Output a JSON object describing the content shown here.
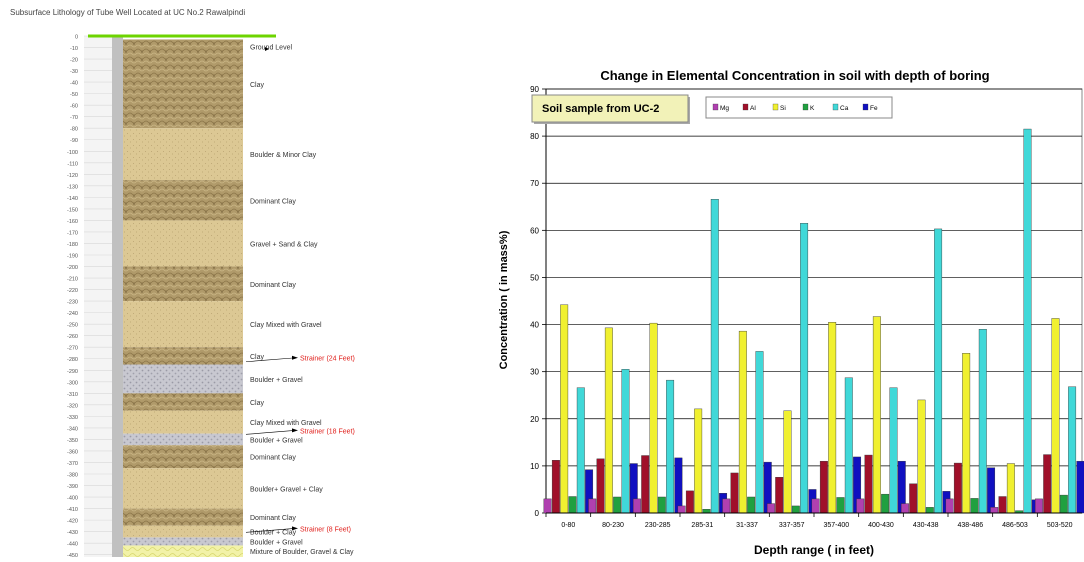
{
  "litho": {
    "title": "Subsurface Lithology of Tube Well Located at UC No.2 Rawalpindi",
    "depth_ticks": [
      0,
      10,
      20,
      30,
      40,
      50,
      60,
      70,
      80,
      90,
      100,
      110,
      120,
      130,
      140,
      150,
      160,
      170,
      180,
      190,
      200,
      210,
      220,
      230,
      240,
      250,
      260,
      270,
      280,
      290,
      300,
      310,
      320,
      330,
      340,
      350,
      360,
      370,
      380,
      390,
      400,
      410,
      420,
      430,
      440,
      450
    ],
    "layers": [
      {
        "top": 0,
        "bottom": 3,
        "pattern": "green",
        "label": ""
      },
      {
        "top": 3,
        "bottom": 80,
        "pattern": "clay",
        "label": "Clay"
      },
      {
        "top": 80,
        "bottom": 125,
        "pattern": "sand",
        "label": "Boulder & Minor Clay"
      },
      {
        "top": 125,
        "bottom": 160,
        "pattern": "clay",
        "label": "Dominant Clay"
      },
      {
        "top": 160,
        "bottom": 200,
        "pattern": "sand",
        "label": "Gravel + Sand & Clay"
      },
      {
        "top": 200,
        "bottom": 230,
        "pattern": "clay",
        "label": "Dominant Clay"
      },
      {
        "top": 230,
        "bottom": 270,
        "pattern": "sand",
        "label": "Clay Mixed with Gravel"
      },
      {
        "top": 270,
        "bottom": 285,
        "pattern": "clay",
        "label": "Clay"
      },
      {
        "top": 285,
        "bottom": 310,
        "pattern": "gravel",
        "label": "Boulder + Gravel"
      },
      {
        "top": 310,
        "bottom": 325,
        "pattern": "clay",
        "label": "Clay"
      },
      {
        "top": 325,
        "bottom": 345,
        "pattern": "sand",
        "label": "Clay Mixed with Gravel"
      },
      {
        "top": 345,
        "bottom": 355,
        "pattern": "gravel",
        "label": "Boulder + Gravel"
      },
      {
        "top": 355,
        "bottom": 375,
        "pattern": "clay",
        "label": "Dominant Clay"
      },
      {
        "top": 375,
        "bottom": 410,
        "pattern": "sand",
        "label": "Boulder+ Gravel + Clay"
      },
      {
        "top": 410,
        "bottom": 425,
        "pattern": "clay",
        "label": "Dominant Clay"
      },
      {
        "top": 425,
        "bottom": 435,
        "pattern": "sand",
        "label": "Boulder + Clay"
      },
      {
        "top": 435,
        "bottom": 442,
        "pattern": "gravel",
        "label": "Boulder + Gravel"
      },
      {
        "top": 442,
        "bottom": 452,
        "pattern": "mixture",
        "label": "Mixture of Boulder, Gravel & Clay"
      }
    ],
    "ground_level": "Ground Level",
    "strainers": [
      {
        "label": "Strainer (24 Feet)",
        "depth": 280
      },
      {
        "label": "Strainer (18 Feet)",
        "depth": 343
      },
      {
        "label": "Strainer (8 Feet)",
        "depth": 428
      }
    ],
    "colors": {
      "clay": "#b09a6a",
      "sand": "#dcc894",
      "gravel": "#c4c4cc",
      "mixture": "#ecec9a",
      "green": "#6dd400",
      "strainer": "#e0201c"
    }
  },
  "chart_data": {
    "type": "bar",
    "title": "Change in Elemental Concentration in soil with depth of boring",
    "xlabel": "Depth range ( in feet)",
    "ylabel": "Concentration ( in mass%)",
    "ylim": [
      0,
      90
    ],
    "yticks": [
      0,
      10,
      20,
      30,
      40,
      50,
      60,
      70,
      80,
      90
    ],
    "grid": true,
    "annotation": "Soil sample from UC-2",
    "legend_position": "top",
    "categories": [
      "0-80",
      "80-230",
      "230-285",
      "285-31",
      "31-337",
      "337-357",
      "357-400",
      "400-430",
      "430-438",
      "438-486",
      "486-503",
      "503-520"
    ],
    "series": [
      {
        "name": "Mg",
        "color": "#b040b0",
        "values": [
          3.0,
          3.0,
          3.0,
          1.5,
          3.0,
          2.0,
          3.0,
          3.0,
          2.0,
          3.0,
          1.2,
          3.0
        ]
      },
      {
        "name": "Al",
        "color": "#a0102a",
        "values": [
          11.2,
          11.5,
          12.2,
          4.7,
          8.5,
          7.6,
          11.0,
          12.3,
          6.2,
          10.6,
          3.5,
          12.4
        ]
      },
      {
        "name": "Si",
        "color": "#f0f030",
        "values": [
          44.2,
          39.3,
          40.3,
          22.1,
          38.6,
          21.7,
          40.5,
          41.7,
          24.0,
          33.9,
          10.5,
          41.3
        ]
      },
      {
        "name": "K",
        "color": "#20a040",
        "values": [
          3.5,
          3.4,
          3.4,
          0.8,
          3.4,
          1.5,
          3.3,
          4.0,
          1.2,
          3.1,
          0.5,
          3.8
        ]
      },
      {
        "name": "Ca",
        "color": "#40d8d8",
        "values": [
          26.6,
          30.5,
          28.2,
          66.6,
          34.3,
          61.5,
          28.7,
          26.6,
          60.3,
          39.0,
          81.5,
          26.8
        ]
      },
      {
        "name": "Fe",
        "color": "#1010c0",
        "values": [
          9.2,
          10.5,
          11.7,
          4.2,
          10.8,
          5.0,
          11.9,
          11.0,
          4.6,
          9.6,
          2.8,
          11.0
        ]
      }
    ]
  }
}
